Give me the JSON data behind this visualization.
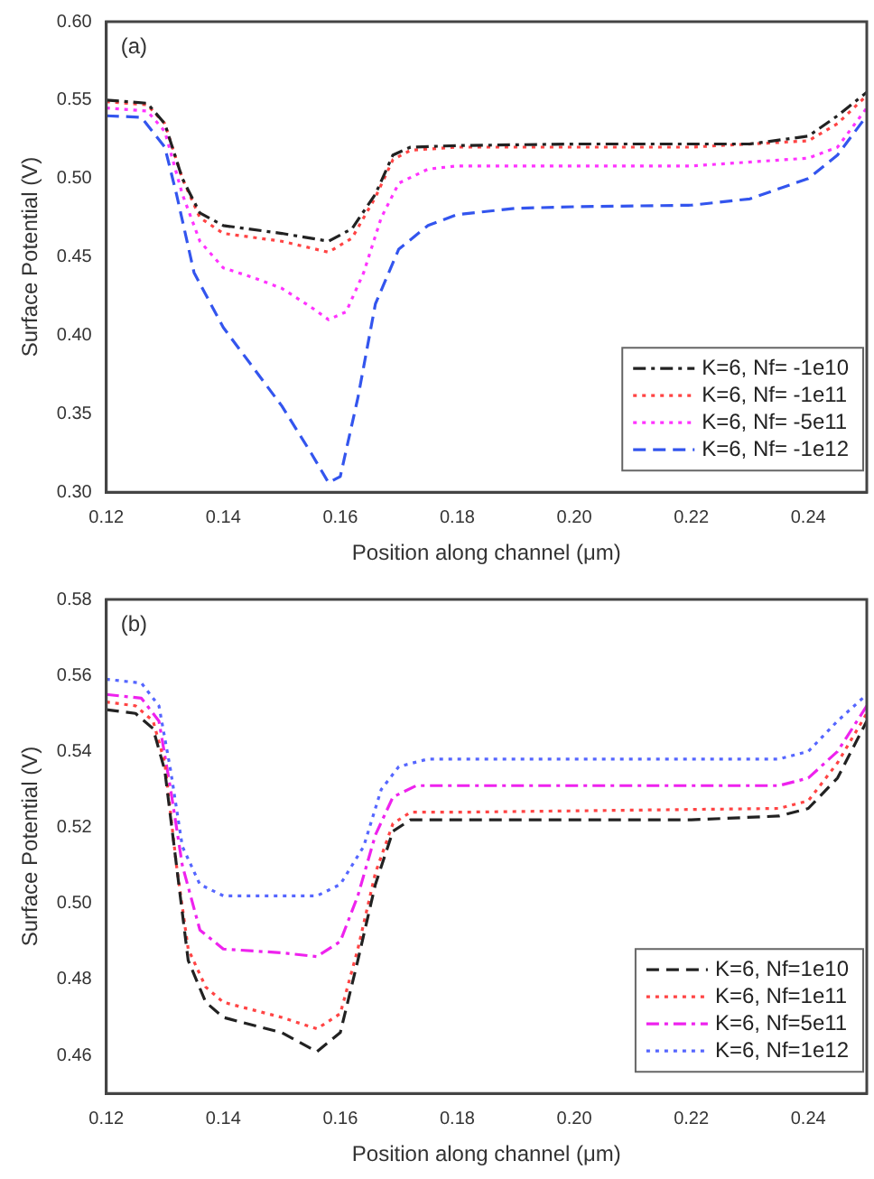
{
  "chart_data": [
    {
      "type": "line",
      "xlabel": "Position along channel (μm)",
      "ylabel": "Surface Potential (V)",
      "annotations": [
        "(a)"
      ],
      "legend": "bottom right",
      "grid": false,
      "marker": "none",
      "xlim": [
        0.12,
        0.25
      ],
      "xticks": [
        0.12,
        0.14,
        0.16,
        0.18,
        {
          "value": 0.2,
          "label": "0.20"
        },
        0.22,
        0.24
      ],
      "ylim": [
        0.3,
        0.6
      ],
      "yticks": [
        {
          "value": 0.3,
          "label": "0.30"
        },
        0.35,
        {
          "value": 0.4,
          "label": "0.40"
        },
        0.45,
        {
          "value": 0.5,
          "label": "0.50"
        },
        0.55,
        {
          "value": 0.6,
          "label": "0.60"
        }
      ],
      "series": [
        {
          "name": "K=6, Nf= -1e10",
          "color": "#222222",
          "line_style": "dashdot",
          "x": [
            0.12,
            0.127,
            0.13,
            0.133,
            0.136,
            0.14,
            0.15,
            0.158,
            0.162,
            0.166,
            0.169,
            0.172,
            0.18,
            0.2,
            0.23,
            0.24,
            0.245,
            0.25
          ],
          "values": [
            0.55,
            0.548,
            0.535,
            0.5,
            0.478,
            0.47,
            0.465,
            0.46,
            0.468,
            0.49,
            0.515,
            0.52,
            0.521,
            0.522,
            0.522,
            0.527,
            0.54,
            0.555
          ]
        },
        {
          "name": "K=6, Nf= -1e11",
          "color": "#ff4444",
          "line_style": "dotted",
          "x": [
            0.12,
            0.127,
            0.13,
            0.133,
            0.136,
            0.14,
            0.15,
            0.158,
            0.162,
            0.166,
            0.169,
            0.172,
            0.18,
            0.22,
            0.24,
            0.245,
            0.25
          ],
          "values": [
            0.549,
            0.547,
            0.535,
            0.5,
            0.475,
            0.465,
            0.46,
            0.453,
            0.462,
            0.488,
            0.512,
            0.518,
            0.52,
            0.52,
            0.524,
            0.535,
            0.553
          ]
        },
        {
          "name": "K=6, Nf= -5e11",
          "color": "#ff33ff",
          "line_style": "dotted",
          "x": [
            0.12,
            0.127,
            0.13,
            0.133,
            0.136,
            0.14,
            0.145,
            0.15,
            0.155,
            0.158,
            0.161,
            0.164,
            0.167,
            0.17,
            0.175,
            0.18,
            0.22,
            0.24,
            0.245,
            0.25
          ],
          "values": [
            0.545,
            0.543,
            0.53,
            0.49,
            0.46,
            0.443,
            0.437,
            0.43,
            0.418,
            0.41,
            0.415,
            0.44,
            0.475,
            0.497,
            0.506,
            0.508,
            0.508,
            0.513,
            0.52,
            0.545
          ]
        },
        {
          "name": "K=6, Nf= -1e12",
          "color": "#3355ee",
          "line_style": "dashed",
          "x": [
            0.12,
            0.126,
            0.13,
            0.132,
            0.135,
            0.14,
            0.145,
            0.15,
            0.155,
            0.158,
            0.16,
            0.163,
            0.166,
            0.17,
            0.175,
            0.18,
            0.19,
            0.2,
            0.22,
            0.23,
            0.24,
            0.245,
            0.25
          ],
          "values": [
            0.54,
            0.539,
            0.52,
            0.49,
            0.44,
            0.405,
            0.38,
            0.355,
            0.325,
            0.306,
            0.31,
            0.36,
            0.42,
            0.455,
            0.47,
            0.477,
            0.481,
            0.482,
            0.483,
            0.487,
            0.5,
            0.515,
            0.54
          ]
        }
      ]
    },
    {
      "type": "line",
      "xlabel": "Position along channel (μm)",
      "ylabel": "Surface Potential (V)",
      "annotations": [
        "(b)"
      ],
      "legend": "bottom right",
      "grid": false,
      "marker": "none",
      "xlim": [
        0.12,
        0.25
      ],
      "xticks": [
        0.12,
        0.14,
        0.16,
        0.18,
        {
          "value": 0.2,
          "label": "0.20"
        },
        0.22,
        0.24
      ],
      "ylim": [
        0.45,
        0.58
      ],
      "yticks": [
        0.46,
        0.48,
        {
          "value": 0.5,
          "label": "0.50"
        },
        0.52,
        0.54,
        0.56,
        0.58
      ],
      "series": [
        {
          "name": "K=6, Nf=1e10",
          "color": "#222222",
          "line_style": "dashed",
          "x": [
            0.12,
            0.125,
            0.128,
            0.13,
            0.132,
            0.134,
            0.137,
            0.14,
            0.15,
            0.156,
            0.16,
            0.163,
            0.166,
            0.169,
            0.172,
            0.18,
            0.22,
            0.235,
            0.24,
            0.245,
            0.25
          ],
          "values": [
            0.551,
            0.55,
            0.546,
            0.535,
            0.51,
            0.485,
            0.474,
            0.47,
            0.466,
            0.461,
            0.466,
            0.485,
            0.505,
            0.519,
            0.522,
            0.522,
            0.522,
            0.523,
            0.525,
            0.533,
            0.548
          ]
        },
        {
          "name": "K=6, Nf=1e11",
          "color": "#ff4444",
          "line_style": "dotted",
          "x": [
            0.12,
            0.125,
            0.128,
            0.13,
            0.132,
            0.134,
            0.137,
            0.14,
            0.15,
            0.156,
            0.16,
            0.163,
            0.166,
            0.169,
            0.172,
            0.18,
            0.235,
            0.24,
            0.245,
            0.25
          ],
          "values": [
            0.553,
            0.552,
            0.548,
            0.537,
            0.51,
            0.488,
            0.478,
            0.474,
            0.47,
            0.467,
            0.471,
            0.488,
            0.508,
            0.521,
            0.524,
            0.524,
            0.525,
            0.527,
            0.537,
            0.55
          ]
        },
        {
          "name": "K=6, Nf=5e11",
          "color": "#ee22ee",
          "line_style": "dashdot",
          "x": [
            0.12,
            0.126,
            0.129,
            0.131,
            0.133,
            0.136,
            0.14,
            0.15,
            0.156,
            0.16,
            0.163,
            0.166,
            0.169,
            0.173,
            0.18,
            0.235,
            0.24,
            0.245,
            0.25
          ],
          "values": [
            0.555,
            0.554,
            0.548,
            0.53,
            0.51,
            0.493,
            0.488,
            0.487,
            0.486,
            0.49,
            0.502,
            0.518,
            0.528,
            0.531,
            0.531,
            0.531,
            0.533,
            0.54,
            0.552
          ]
        },
        {
          "name": "K=6, Nf=1e12",
          "color": "#5566ff",
          "line_style": "dotted",
          "x": [
            0.12,
            0.126,
            0.129,
            0.131,
            0.133,
            0.136,
            0.14,
            0.15,
            0.156,
            0.16,
            0.164,
            0.167,
            0.17,
            0.175,
            0.18,
            0.235,
            0.24,
            0.245,
            0.25
          ],
          "values": [
            0.559,
            0.558,
            0.552,
            0.535,
            0.515,
            0.505,
            0.502,
            0.502,
            0.502,
            0.505,
            0.515,
            0.53,
            0.536,
            0.538,
            0.538,
            0.538,
            0.54,
            0.548,
            0.555
          ]
        }
      ]
    }
  ]
}
